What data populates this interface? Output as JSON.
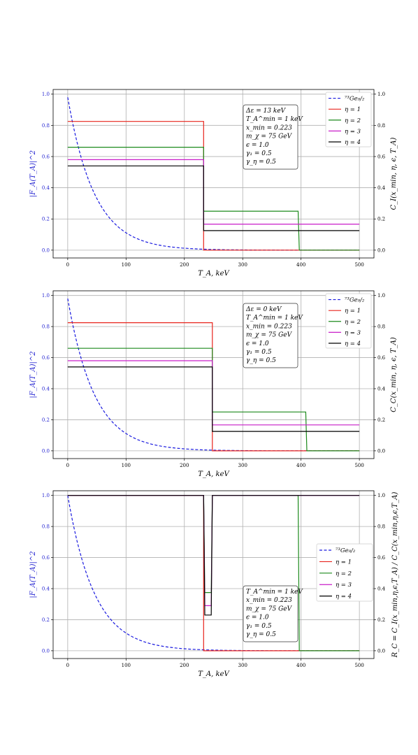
{
  "colors": {
    "left_axis": "#1f1fd0",
    "eta1": "#e8231b",
    "eta2": "#1c8a1c",
    "eta3": "#c91ec9",
    "eta4": "#000000",
    "form_factor": "#1a1adf",
    "grid": "#b0b0b0"
  },
  "chart_data": [
    {
      "type": "line",
      "xlabel": "T_A, keV",
      "ylabel_left": "|F_A(T_A)|^2",
      "ylabel_right": "C_I(x_min, η, ϵ, T_A)",
      "xlim": [
        -25,
        525
      ],
      "ylim": [
        -0.05,
        1.03
      ],
      "x_ticks": [
        0,
        100,
        200,
        300,
        400,
        500
      ],
      "y_ticks": [
        0.0,
        0.2,
        0.4,
        0.6,
        0.8,
        1.0
      ],
      "y_tick_labels": [
        "0.0",
        "0.2",
        "0.4",
        "0.6",
        "0.8",
        "1.0"
      ],
      "grid": true,
      "legend_position": "top-right",
      "form_factor": {
        "name": "⁷³Ge₉/₂",
        "style": "dashed",
        "start": 0.98,
        "decay_kev": 46
      },
      "series": [
        {
          "name": "η = 1",
          "color_key": "eta1",
          "points": [
            [
              0,
              0.825
            ],
            [
              233,
              0.825
            ],
            [
              233,
              0.0
            ],
            [
              500,
              0.0
            ]
          ]
        },
        {
          "name": "η = 2",
          "color_key": "eta2",
          "points": [
            [
              0,
              0.66
            ],
            [
              233,
              0.66
            ],
            [
              233,
              0.25
            ],
            [
              395,
              0.25
            ],
            [
              397,
              0.0
            ],
            [
              500,
              0.0
            ]
          ]
        },
        {
          "name": "η = 3",
          "color_key": "eta3",
          "points": [
            [
              0,
              0.58
            ],
            [
              233,
              0.58
            ],
            [
              233,
              0.167
            ],
            [
              500,
              0.167
            ]
          ]
        },
        {
          "name": "η = 4",
          "color_key": "eta4",
          "points": [
            [
              0,
              0.54
            ],
            [
              233,
              0.54
            ],
            [
              233,
              0.125
            ],
            [
              500,
              0.125
            ]
          ]
        }
      ],
      "annotation": [
        "Δε = 13 keV",
        "T_A^min = 1 keV",
        "x_min = 0.223",
        "m_χ = 75 GeV",
        "ϵ = 1.0",
        "γ₁ = 0.5",
        "γ_η = 0.5"
      ]
    },
    {
      "type": "line",
      "xlabel": "T_A, keV",
      "ylabel_left": "|F_A(T_A)|^2",
      "ylabel_right": "C_C(x_min, η, ϵ, T_A)",
      "xlim": [
        -25,
        525
      ],
      "ylim": [
        -0.05,
        1.03
      ],
      "x_ticks": [
        0,
        100,
        200,
        300,
        400,
        500
      ],
      "y_ticks": [
        0.0,
        0.2,
        0.4,
        0.6,
        0.8,
        1.0
      ],
      "y_tick_labels": [
        "0.0",
        "0.2",
        "0.4",
        "0.6",
        "0.8",
        "1.0"
      ],
      "grid": true,
      "legend_position": "top-right",
      "form_factor": {
        "name": "⁷³Ge₉/₂",
        "style": "dashed",
        "start": 0.98,
        "decay_kev": 46
      },
      "series": [
        {
          "name": "η = 1",
          "color_key": "eta1",
          "points": [
            [
              0,
              0.825
            ],
            [
              248,
              0.825
            ],
            [
              248,
              0.0
            ],
            [
              500,
              0.0
            ]
          ]
        },
        {
          "name": "η = 2",
          "color_key": "eta2",
          "points": [
            [
              0,
              0.66
            ],
            [
              248,
              0.66
            ],
            [
              248,
              0.25
            ],
            [
              408,
              0.25
            ],
            [
              410,
              0.0
            ],
            [
              500,
              0.0
            ]
          ]
        },
        {
          "name": "η = 3",
          "color_key": "eta3",
          "points": [
            [
              0,
              0.58
            ],
            [
              248,
              0.58
            ],
            [
              248,
              0.167
            ],
            [
              500,
              0.167
            ]
          ]
        },
        {
          "name": "η = 4",
          "color_key": "eta4",
          "points": [
            [
              0,
              0.54
            ],
            [
              248,
              0.54
            ],
            [
              248,
              0.125
            ],
            [
              500,
              0.125
            ]
          ]
        }
      ],
      "annotation": [
        "Δε = 0 keV",
        "T_A^min = 1 keV",
        "x_min = 0.223",
        "m_χ = 75 GeV",
        "ϵ = 1.0",
        "γ₁ = 0.5",
        "γ_η = 0.5"
      ]
    },
    {
      "type": "line",
      "xlabel": "T_A, keV",
      "ylabel_left": "|F_A(T_A)|^2",
      "ylabel_right": "R_C = C_I(x_min,η,ϵ,T_A) / C_C(x_min,η,ϵ,T_A)",
      "xlim": [
        -25,
        525
      ],
      "ylim": [
        -0.05,
        1.03
      ],
      "x_ticks": [
        0,
        100,
        200,
        300,
        400,
        500
      ],
      "y_ticks": [
        0.0,
        0.2,
        0.4,
        0.6,
        0.8,
        1.0
      ],
      "y_tick_labels": [
        "0.0",
        "0.2",
        "0.4",
        "0.6",
        "0.8",
        "1.0"
      ],
      "grid": true,
      "legend_position": "center-right",
      "form_factor": {
        "name": "⁷³Ge₉/₂",
        "style": "dashed",
        "start": 1.0,
        "decay_kev": 46
      },
      "series": [
        {
          "name": "η = 1",
          "color_key": "eta1",
          "points": [
            [
              0,
              1.0
            ],
            [
              233,
              1.0
            ],
            [
              233,
              0.0
            ],
            [
              500,
              0.0
            ]
          ]
        },
        {
          "name": "η = 2",
          "color_key": "eta2",
          "points": [
            [
              0,
              1.0
            ],
            [
              233,
              1.0
            ],
            [
              235,
              0.375
            ],
            [
              246,
              0.375
            ],
            [
              248,
              1.0
            ],
            [
              395,
              1.0
            ],
            [
              397,
              0.0
            ],
            [
              500,
              0.0
            ]
          ]
        },
        {
          "name": "η = 3",
          "color_key": "eta3",
          "points": [
            [
              0,
              1.0
            ],
            [
              233,
              1.0
            ],
            [
              235,
              0.29
            ],
            [
              246,
              0.29
            ],
            [
              248,
              1.0
            ],
            [
              500,
              1.0
            ]
          ]
        },
        {
          "name": "η = 4",
          "color_key": "eta4",
          "points": [
            [
              0,
              1.0
            ],
            [
              233,
              1.0
            ],
            [
              235,
              0.23
            ],
            [
              246,
              0.23
            ],
            [
              248,
              1.0
            ],
            [
              500,
              1.0
            ]
          ]
        }
      ],
      "annotation": [
        "T_A^min = 1 keV",
        "x_min = 0.223",
        "m_χ = 75 GeV",
        "ϵ = 1.0",
        "γ₁ = 0.5",
        "γ_η = 0.5"
      ]
    }
  ]
}
